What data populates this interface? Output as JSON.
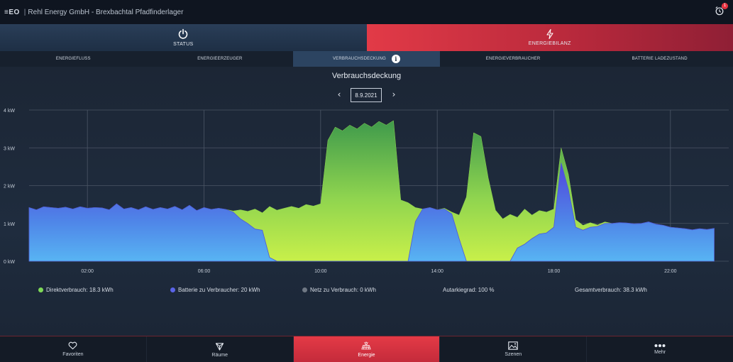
{
  "app": {
    "logo": "≡EO",
    "title": "Rehl Energy GmbH - Brexbachtal Pfadfinderlager",
    "alarm_count": "1"
  },
  "modes": [
    {
      "label": "STATUS",
      "icon": "power-icon"
    },
    {
      "label": "ENERGIEBILANZ",
      "icon": "lightning-icon"
    }
  ],
  "subtabs": [
    {
      "label": "ENERGIEFLUSS"
    },
    {
      "label": "ENERGIEERZEUGER"
    },
    {
      "label": "VERBRAUCHSDECKUNG",
      "active": true
    },
    {
      "label": "ENERGIEVERBRAUCHER"
    },
    {
      "label": "BATTERIE LADEZUSTAND"
    }
  ],
  "chart_header": {
    "title": "Verbrauchsdeckung",
    "date": "8.9.2021"
  },
  "chart_data": {
    "type": "area",
    "title": "Verbrauchsdeckung",
    "x_unit": "hour",
    "xlim": [
      0,
      24
    ],
    "ylim": [
      0,
      4
    ],
    "y_ticks": [
      "0 kW",
      "1 kW",
      "2 kW",
      "3 kW",
      "4 kW"
    ],
    "x_ticks": [
      "02:00",
      "06:00",
      "10:00",
      "14:00",
      "18:00",
      "22:00"
    ],
    "grid": true,
    "total_curve": [
      [
        0,
        1.42
      ],
      [
        0.25,
        1.36
      ],
      [
        0.5,
        1.44
      ],
      [
        0.75,
        1.42
      ],
      [
        1,
        1.4
      ],
      [
        1.25,
        1.43
      ],
      [
        1.5,
        1.38
      ],
      [
        1.75,
        1.44
      ],
      [
        2,
        1.4
      ],
      [
        2.25,
        1.42
      ],
      [
        2.5,
        1.41
      ],
      [
        2.75,
        1.36
      ],
      [
        3,
        1.52
      ],
      [
        3.25,
        1.38
      ],
      [
        3.5,
        1.42
      ],
      [
        3.75,
        1.36
      ],
      [
        4,
        1.44
      ],
      [
        4.25,
        1.37
      ],
      [
        4.5,
        1.42
      ],
      [
        4.75,
        1.38
      ],
      [
        5,
        1.45
      ],
      [
        5.25,
        1.36
      ],
      [
        5.5,
        1.48
      ],
      [
        5.75,
        1.34
      ],
      [
        6,
        1.42
      ],
      [
        6.25,
        1.37
      ],
      [
        6.5,
        1.4
      ],
      [
        6.75,
        1.37
      ],
      [
        7,
        1.33
      ],
      [
        7.25,
        1.36
      ],
      [
        7.5,
        1.32
      ],
      [
        7.75,
        1.38
      ],
      [
        8,
        1.28
      ],
      [
        8.25,
        1.45
      ],
      [
        8.5,
        1.35
      ],
      [
        8.75,
        1.4
      ],
      [
        9,
        1.45
      ],
      [
        9.25,
        1.4
      ],
      [
        9.5,
        1.5
      ],
      [
        9.75,
        1.46
      ],
      [
        10,
        1.52
      ],
      [
        10.25,
        3.2
      ],
      [
        10.5,
        3.55
      ],
      [
        10.75,
        3.45
      ],
      [
        11,
        3.6
      ],
      [
        11.25,
        3.5
      ],
      [
        11.5,
        3.65
      ],
      [
        11.75,
        3.55
      ],
      [
        12,
        3.7
      ],
      [
        12.25,
        3.6
      ],
      [
        12.5,
        3.72
      ],
      [
        12.75,
        1.62
      ],
      [
        13,
        1.55
      ],
      [
        13.25,
        1.42
      ],
      [
        13.5,
        1.38
      ],
      [
        13.75,
        1.42
      ],
      [
        14,
        1.36
      ],
      [
        14.25,
        1.4
      ],
      [
        14.5,
        1.3
      ],
      [
        14.75,
        1.22
      ],
      [
        15,
        1.7
      ],
      [
        15.25,
        3.4
      ],
      [
        15.5,
        3.3
      ],
      [
        15.75,
        2.2
      ],
      [
        16,
        1.35
      ],
      [
        16.25,
        1.12
      ],
      [
        16.5,
        1.24
      ],
      [
        16.75,
        1.16
      ],
      [
        17,
        1.38
      ],
      [
        17.25,
        1.22
      ],
      [
        17.5,
        1.34
      ],
      [
        17.75,
        1.3
      ],
      [
        18,
        1.38
      ],
      [
        18.25,
        3.0
      ],
      [
        18.5,
        2.3
      ],
      [
        18.75,
        1.1
      ],
      [
        19,
        0.95
      ],
      [
        19.25,
        1.02
      ],
      [
        19.5,
        0.96
      ],
      [
        19.75,
        1.04
      ],
      [
        20,
        1.0
      ],
      [
        20.25,
        1.02
      ],
      [
        20.5,
        1.01
      ],
      [
        20.75,
        0.99
      ],
      [
        21,
        1.0
      ],
      [
        21.25,
        1.04
      ],
      [
        21.5,
        0.98
      ],
      [
        21.75,
        0.95
      ],
      [
        22,
        0.9
      ],
      [
        22.25,
        0.88
      ],
      [
        22.5,
        0.86
      ],
      [
        22.75,
        0.83
      ],
      [
        23,
        0.86
      ],
      [
        23.25,
        0.84
      ],
      [
        23.5,
        0.87
      ]
    ],
    "battery_curve": [
      [
        0,
        1.42
      ],
      [
        0.25,
        1.36
      ],
      [
        0.5,
        1.44
      ],
      [
        0.75,
        1.42
      ],
      [
        1,
        1.4
      ],
      [
        1.25,
        1.43
      ],
      [
        1.5,
        1.38
      ],
      [
        1.75,
        1.44
      ],
      [
        2,
        1.4
      ],
      [
        2.25,
        1.42
      ],
      [
        2.5,
        1.41
      ],
      [
        2.75,
        1.36
      ],
      [
        3,
        1.52
      ],
      [
        3.25,
        1.38
      ],
      [
        3.5,
        1.42
      ],
      [
        3.75,
        1.36
      ],
      [
        4,
        1.44
      ],
      [
        4.25,
        1.37
      ],
      [
        4.5,
        1.42
      ],
      [
        4.75,
        1.38
      ],
      [
        5,
        1.45
      ],
      [
        5.25,
        1.36
      ],
      [
        5.5,
        1.48
      ],
      [
        5.75,
        1.34
      ],
      [
        6,
        1.42
      ],
      [
        6.25,
        1.37
      ],
      [
        6.5,
        1.4
      ],
      [
        6.75,
        1.37
      ],
      [
        7,
        1.3
      ],
      [
        7.25,
        1.12
      ],
      [
        7.5,
        1.0
      ],
      [
        7.75,
        0.85
      ],
      [
        8,
        0.82
      ],
      [
        8.25,
        0.1
      ],
      [
        8.5,
        0
      ],
      [
        13,
        0
      ],
      [
        13.25,
        1.05
      ],
      [
        13.5,
        1.38
      ],
      [
        13.75,
        1.42
      ],
      [
        14,
        1.36
      ],
      [
        14.25,
        1.38
      ],
      [
        14.5,
        1.25
      ],
      [
        14.75,
        0.6
      ],
      [
        15,
        0
      ],
      [
        16.5,
        0
      ],
      [
        16.75,
        0.35
      ],
      [
        17,
        0.45
      ],
      [
        17.25,
        0.6
      ],
      [
        17.5,
        0.72
      ],
      [
        17.75,
        0.75
      ],
      [
        18,
        0.9
      ],
      [
        18.25,
        2.6
      ],
      [
        18.5,
        1.9
      ],
      [
        18.75,
        0.9
      ],
      [
        19,
        0.82
      ],
      [
        19.25,
        0.9
      ],
      [
        19.5,
        0.92
      ],
      [
        19.75,
        1.0
      ],
      [
        20,
        1.0
      ],
      [
        20.25,
        1.02
      ],
      [
        20.5,
        1.01
      ],
      [
        20.75,
        0.99
      ],
      [
        21,
        1.0
      ],
      [
        21.25,
        1.04
      ],
      [
        21.5,
        0.98
      ],
      [
        21.75,
        0.95
      ],
      [
        22,
        0.9
      ],
      [
        22.25,
        0.88
      ],
      [
        22.5,
        0.86
      ],
      [
        22.75,
        0.83
      ],
      [
        23,
        0.86
      ],
      [
        23.25,
        0.84
      ],
      [
        23.5,
        0.87
      ]
    ],
    "series": [
      {
        "name": "Direktverbrauch: 18.3 kWh",
        "color": "#7ed957"
      },
      {
        "name": "Batterie zu Verbraucher: 20 kWh",
        "color": "#5a64e8"
      },
      {
        "name": "Netz zu Verbrauch: 0 kWh",
        "color": "#6f7884"
      }
    ]
  },
  "legend": {
    "direkt": "Direktverbrauch: 18.3 kWh",
    "batterie": "Batterie zu Verbraucher: 20 kWh",
    "netz": "Netz zu Verbrauch: 0 kWh",
    "autarkie": "Autarkiegrad: 100 %",
    "gesamt": "Gesamtverbrauch: 38.3 kWh"
  },
  "bottomnav": [
    {
      "label": "Favoriten",
      "icon": "heart-icon"
    },
    {
      "label": "Räume",
      "icon": "cube-icon"
    },
    {
      "label": "Energie",
      "icon": "solar-panel-icon",
      "active": true
    },
    {
      "label": "Szenen",
      "icon": "image-icon"
    },
    {
      "label": "Mehr",
      "icon": "more-dots-icon"
    }
  ],
  "colors": {
    "accent_red": "#e23a47",
    "direkt_green": "#7ed957",
    "battery_blue": "#5a64e8",
    "grid_gray": "#6f7884"
  }
}
